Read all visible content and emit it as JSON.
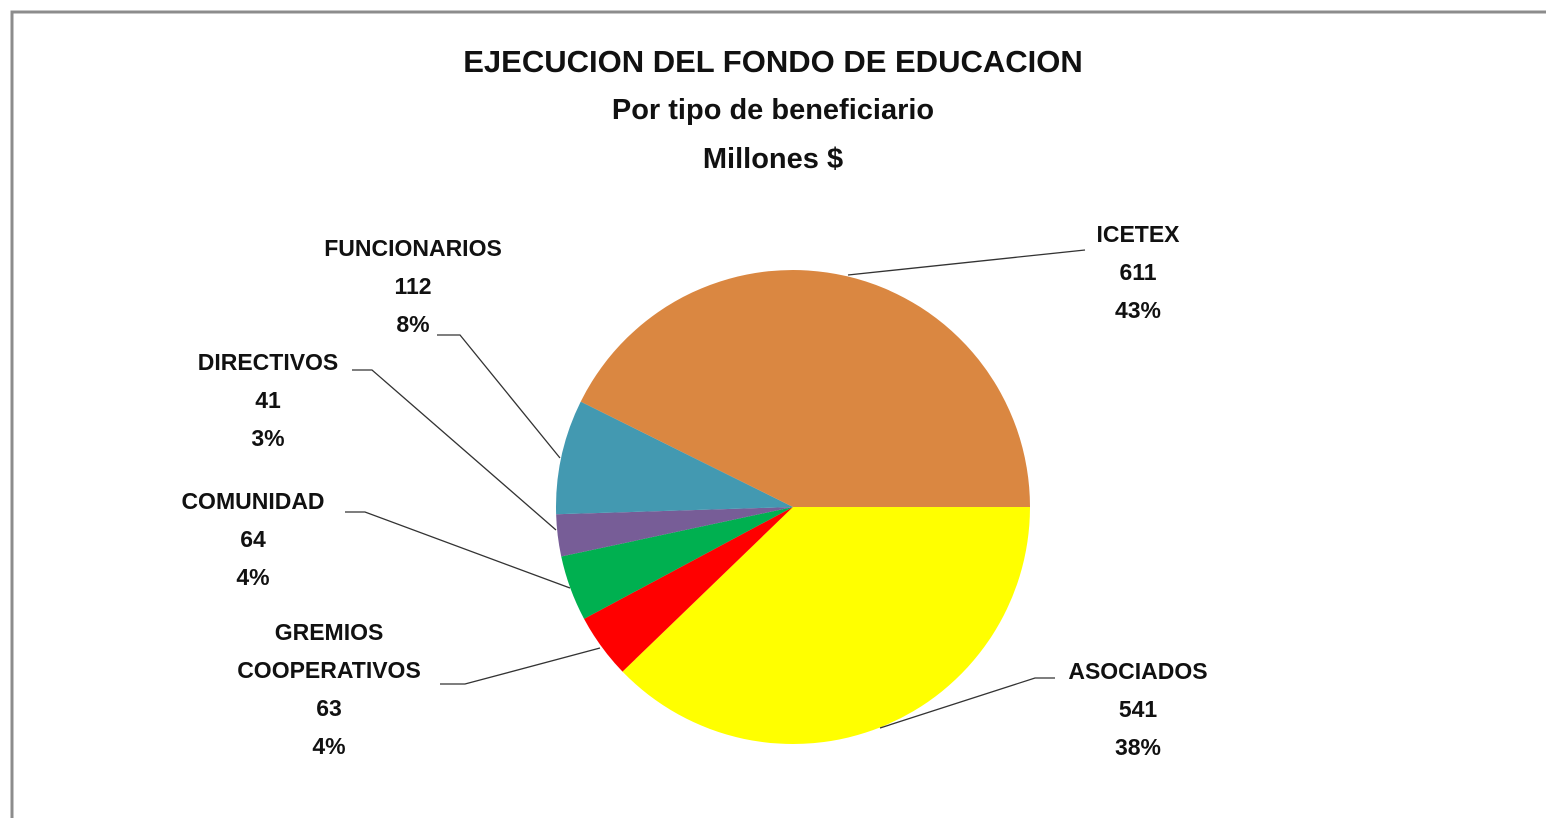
{
  "chart_data": {
    "type": "pie",
    "title": "EJECUCION DEL FONDO DE EDUCACION",
    "subtitle": [
      "Por tipo de beneficiario",
      "Millones $"
    ],
    "categories": [
      "ASOCIADOS",
      "GREMIOS COOPERATIVOS",
      "COMUNIDAD",
      "DIRECTIVOS",
      "FUNCIONARIOS",
      "ICETEX"
    ],
    "values": [
      541,
      63,
      64,
      41,
      112,
      611
    ],
    "percentages": [
      38,
      4,
      4,
      3,
      8,
      43
    ],
    "percentage_labels": [
      "38%",
      "4%",
      "4%",
      "3%",
      "8%",
      "43%"
    ],
    "colors": [
      "#ffff00",
      "#ff0000",
      "#00b050",
      "#775d97",
      "#4399b1",
      "#da8741"
    ]
  }
}
